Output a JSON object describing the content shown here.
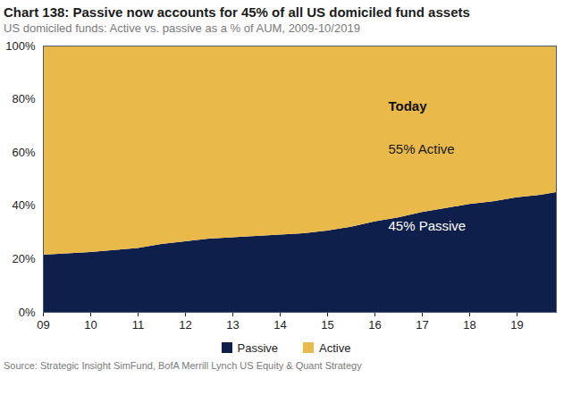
{
  "chart_data": {
    "type": "area",
    "title": "Chart 138: Passive now accounts for 45% of all US domiciled fund assets",
    "subtitle": "US domiciled funds: Active vs. passive as a % of AUM, 2009-10/2019",
    "source": "Source: Strategic Insight SimFund, BofA Merrill Lynch US Equity & Quant Strategy",
    "stacked": true,
    "legend": "bottom",
    "x": [
      2009,
      2009.5,
      2010,
      2010.5,
      2011,
      2011.5,
      2012,
      2012.5,
      2013,
      2013.5,
      2014,
      2014.5,
      2015,
      2015.5,
      2016,
      2016.5,
      2017,
      2017.5,
      2018,
      2018.5,
      2019,
      2019.5,
      2019.83
    ],
    "xlim": [
      2009,
      2019.83
    ],
    "xticks": [
      {
        "value": 2009,
        "label": "09"
      },
      {
        "value": 2010,
        "label": "10"
      },
      {
        "value": 2011,
        "label": "11"
      },
      {
        "value": 2012,
        "label": "12"
      },
      {
        "value": 2013,
        "label": "13"
      },
      {
        "value": 2014,
        "label": "14"
      },
      {
        "value": 2015,
        "label": "15"
      },
      {
        "value": 2016,
        "label": "16"
      },
      {
        "value": 2017,
        "label": "17"
      },
      {
        "value": 2018,
        "label": "18"
      },
      {
        "value": 2019,
        "label": "19"
      }
    ],
    "ylim": [
      0,
      100
    ],
    "yticks": [
      {
        "value": 0,
        "label": "0%"
      },
      {
        "value": 20,
        "label": "20%"
      },
      {
        "value": 40,
        "label": "40%"
      },
      {
        "value": 60,
        "label": "60%"
      },
      {
        "value": 80,
        "label": "80%"
      },
      {
        "value": 100,
        "label": "100%"
      }
    ],
    "series": [
      {
        "name": "Passive",
        "color": "#0f1f4b",
        "values": [
          21.5,
          22,
          22.5,
          23.2,
          24,
          25.5,
          26.5,
          27.5,
          28,
          28.5,
          29,
          29.5,
          30.5,
          32,
          34,
          35.5,
          37.5,
          39,
          40.5,
          41.5,
          43,
          44,
          45
        ]
      },
      {
        "name": "Active",
        "color": "#e9b949",
        "values": [
          78.5,
          78,
          77.5,
          76.8,
          76,
          74.5,
          73.5,
          72.5,
          72,
          71.5,
          71,
          70.5,
          69.5,
          68,
          66,
          64.5,
          62.5,
          61,
          59.5,
          58.5,
          57,
          56,
          55
        ]
      }
    ],
    "annotations": [
      "Today",
      "55% Active",
      "45% Passive"
    ]
  }
}
